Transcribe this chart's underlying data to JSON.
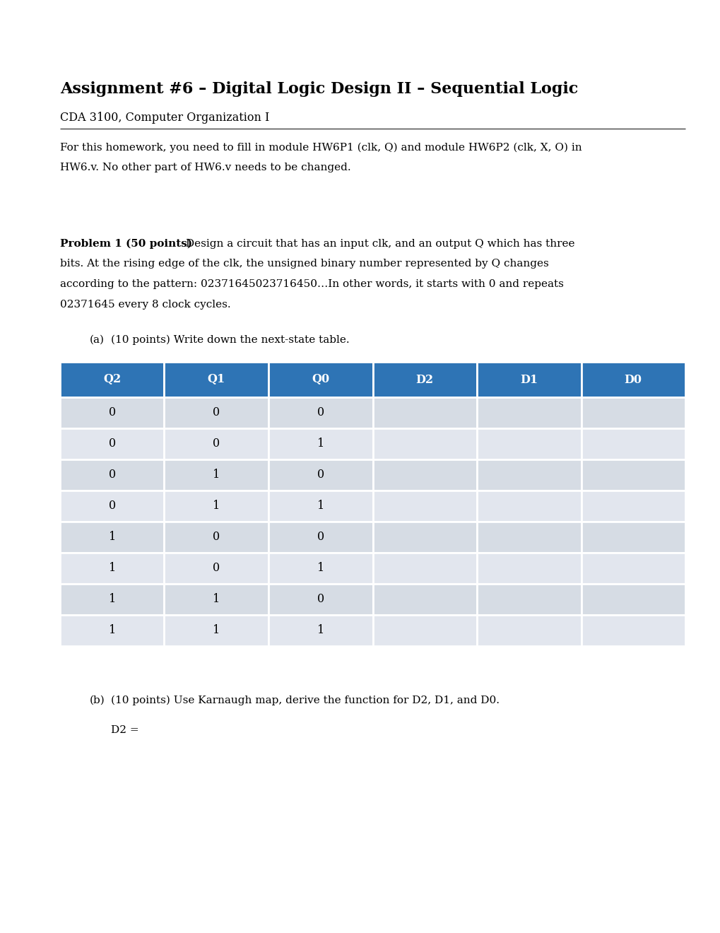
{
  "title": "Assignment #6 – Digital Logic Design II – Sequential Logic",
  "subtitle": "CDA 3100, Computer Organization I",
  "intro_line1": "For this homework, you need to fill in module HW6P1 (clk, Q) and module HW6P2 (clk, X, O) in",
  "intro_line2": "HW6.v. No other part of HW6.v needs to be changed.",
  "problem1_bold": "Problem 1 (50 points)",
  "problem1_rest_line1": " Design a circuit that has an input clk, and an output Q which has three",
  "problem1_line2": "bits. At the rising edge of the clk, the unsigned binary number represented by Q changes",
  "problem1_line3": "according to the pattern: 02371645023716450…In other words, it starts with 0 and repeats",
  "problem1_line4": "02371645 every 8 clock cycles.",
  "part_a_label": "(a)",
  "part_a_text": "(10 points) Write down the next-state table.",
  "table_headers": [
    "Q2",
    "Q1",
    "Q0",
    "D2",
    "D1",
    "D0"
  ],
  "table_header_bg": "#2E74B5",
  "table_header_text": "#FFFFFF",
  "table_row_colors": [
    "#D6DCE4",
    "#E2E6EE",
    "#D6DCE4",
    "#E2E6EE",
    "#D6DCE4",
    "#E2E6EE",
    "#D6DCE4",
    "#E2E6EE"
  ],
  "table_data": [
    [
      "0",
      "0",
      "0",
      "",
      "",
      ""
    ],
    [
      "0",
      "0",
      "1",
      "",
      "",
      ""
    ],
    [
      "0",
      "1",
      "0",
      "",
      "",
      ""
    ],
    [
      "0",
      "1",
      "1",
      "",
      "",
      ""
    ],
    [
      "1",
      "0",
      "0",
      "",
      "",
      ""
    ],
    [
      "1",
      "0",
      "1",
      "",
      "",
      ""
    ],
    [
      "1",
      "1",
      "0",
      "",
      "",
      ""
    ],
    [
      "1",
      "1",
      "1",
      "",
      "",
      ""
    ]
  ],
  "part_b_label": "(b)",
  "part_b_text": "(10 points) Use Karnaugh map, derive the function for D2, D1, and D0.",
  "d2_label": "D2 =",
  "background_color": "#FFFFFF",
  "text_color": "#000000",
  "rule_color": "#333333"
}
